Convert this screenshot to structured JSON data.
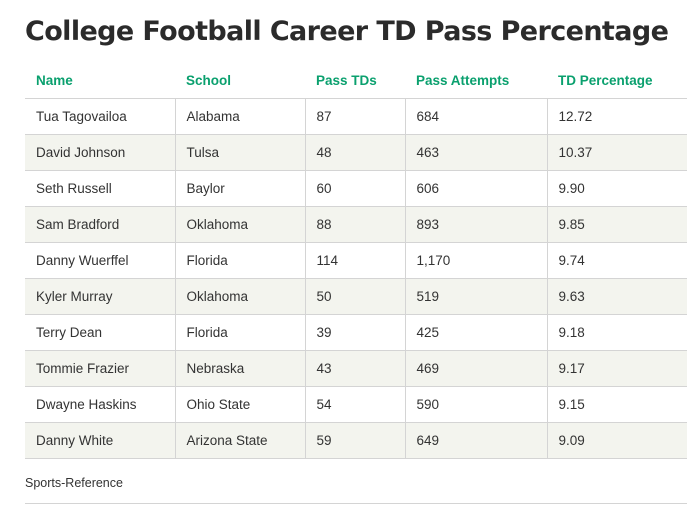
{
  "colors": {
    "header": "#0aa06e",
    "stripe": "#f3f4ee",
    "border": "#d4d4d4",
    "title": "#2b2b2b"
  },
  "chart_data": {
    "type": "table",
    "title": "College Football Career TD Pass Percentage",
    "columns": [
      "Name",
      "School",
      "Pass TDs",
      "Pass Attempts",
      "TD Percentage"
    ],
    "rows": [
      [
        "Tua Tagovailoa",
        "Alabama",
        "87",
        "684",
        "12.72"
      ],
      [
        "David Johnson",
        "Tulsa",
        "48",
        "463",
        "10.37"
      ],
      [
        "Seth Russell",
        "Baylor",
        "60",
        "606",
        "9.90"
      ],
      [
        "Sam Bradford",
        "Oklahoma",
        "88",
        "893",
        "9.85"
      ],
      [
        "Danny Wuerffel",
        "Florida",
        "114",
        "1,170",
        "9.74"
      ],
      [
        "Kyler Murray",
        "Oklahoma",
        "50",
        "519",
        "9.63"
      ],
      [
        "Terry Dean",
        "Florida",
        "39",
        "425",
        "9.18"
      ],
      [
        "Tommie Frazier",
        "Nebraska",
        "43",
        "469",
        "9.17"
      ],
      [
        "Dwayne Haskins",
        "Ohio State",
        "54",
        "590",
        "9.15"
      ],
      [
        "Danny White",
        "Arizona State",
        "59",
        "649",
        "9.09"
      ]
    ],
    "source": "Sports-Reference"
  }
}
